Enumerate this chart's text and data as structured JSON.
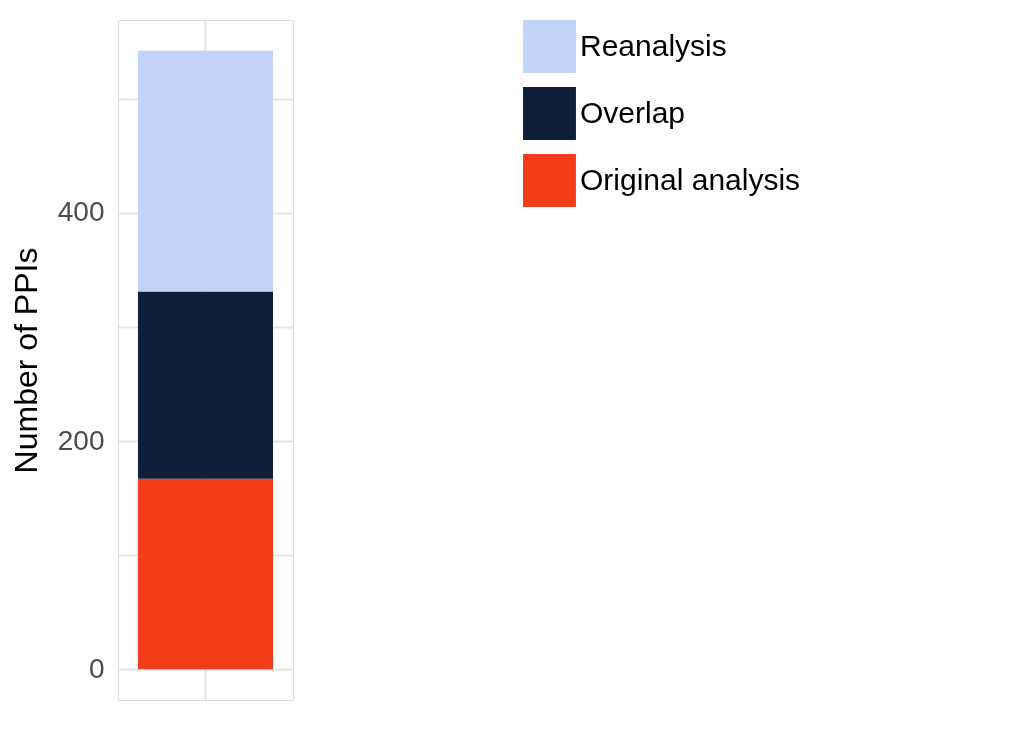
{
  "chart_data": {
    "type": "bar",
    "ylabel": "Number of PPIs",
    "categories": [
      null
    ],
    "stacked": true,
    "series": [
      {
        "name": "Original analysis",
        "color": "#f33d1a",
        "values": [
          167
        ]
      },
      {
        "name": "Overlap",
        "color": "#0f1f3a",
        "values": [
          164
        ]
      },
      {
        "name": "Reanalysis",
        "color": "#c2d3f7",
        "values": [
          211
        ]
      }
    ],
    "ylim": [
      -27,
      569
    ],
    "yticks": [
      0,
      {
        "value": 100,
        "label": null
      },
      200,
      {
        "value": 300,
        "label": null
      },
      400,
      {
        "value": 500,
        "label": null
      }
    ],
    "grid": true,
    "legend": "right"
  }
}
